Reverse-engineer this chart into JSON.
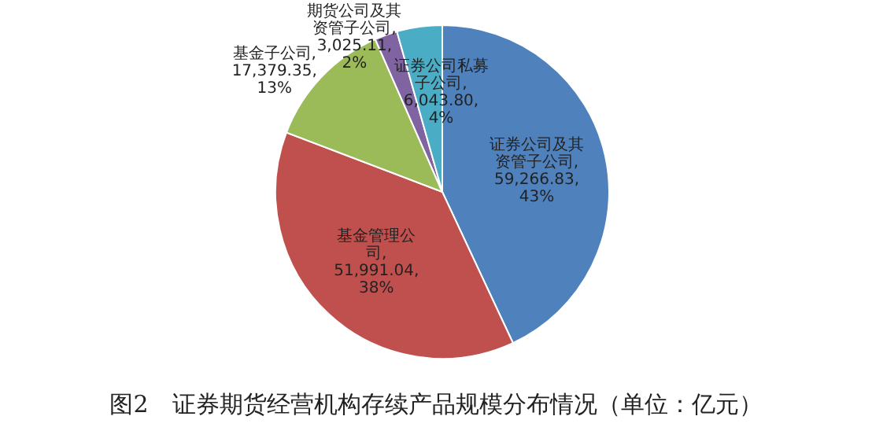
{
  "chart_data": {
    "type": "pie",
    "title": "图2　证券期货经营机构存续产品规模分布情况（单位：亿元）",
    "categories": [
      "证券公司及其资管子公司",
      "基金管理公司",
      "基金子公司",
      "期货公司及其资管子公司",
      "证券公司私募子公司"
    ],
    "values": [
      59266.83,
      51991.04,
      17379.35,
      3025.11,
      6043.8
    ],
    "value_labels": [
      ", 59,266.83, 43%",
      ", 51,991.04, 38%",
      ", 17,379.35, 13%",
      ", 3,025.11, 2%",
      ", 6,043.80, 4%"
    ],
    "colors": [
      "#4f81bd",
      "#c0504d",
      "#9bbb59",
      "#8064a2",
      "#4bacc6"
    ]
  }
}
